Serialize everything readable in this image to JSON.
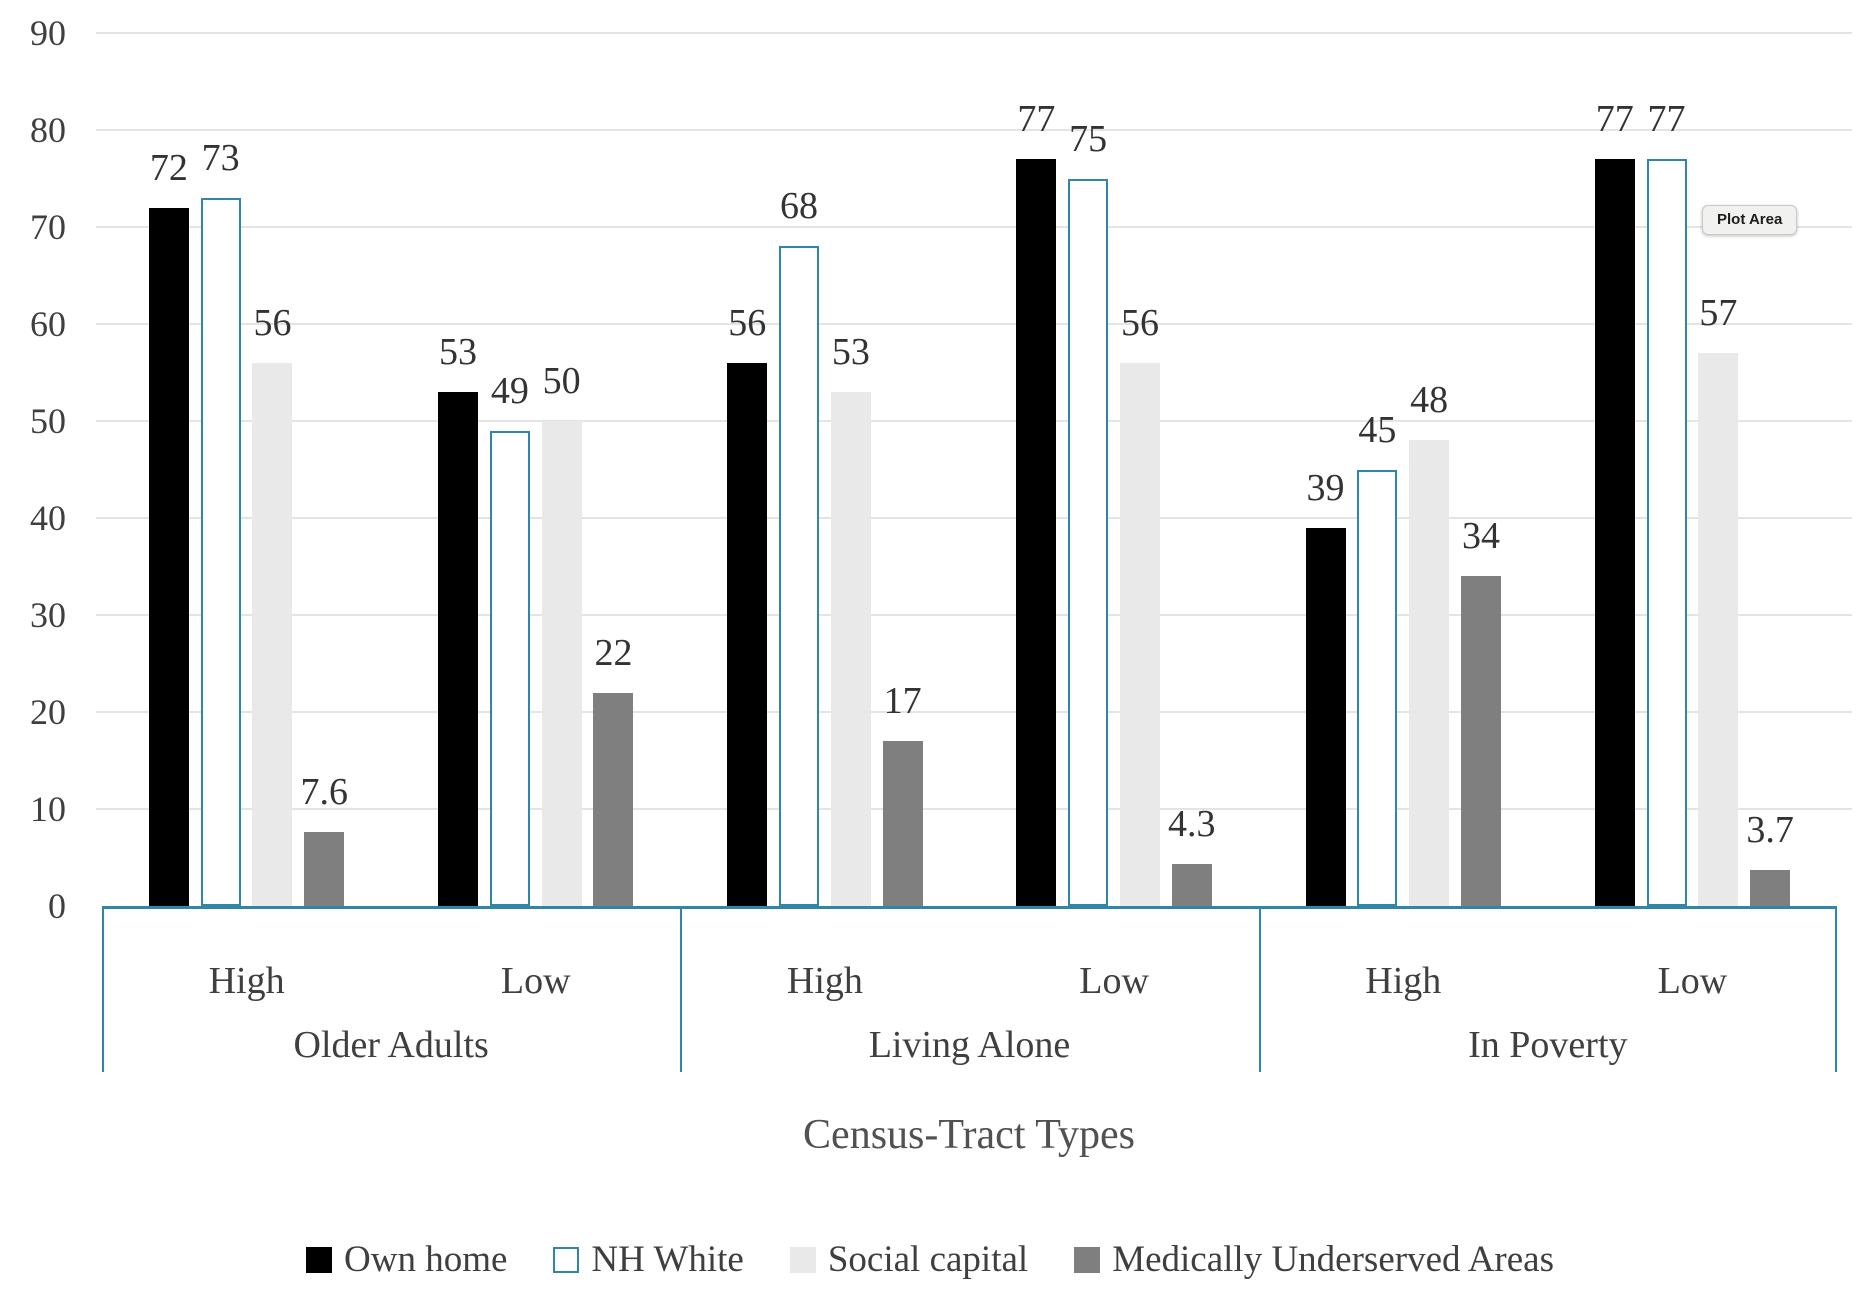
{
  "chart_data": {
    "type": "bar",
    "title": "",
    "xlabel": "Census-Tract Types",
    "ylabel": "",
    "ylim": [
      0,
      90
    ],
    "ytick_step": 10,
    "grid": true,
    "legend_position": "bottom",
    "yaxis_tick_labels": [
      "0",
      "10",
      "20",
      "30",
      "40",
      "50",
      "60",
      "70",
      "80",
      "90"
    ],
    "series": [
      {
        "name": "Own home",
        "fill": "#000000",
        "border": null
      },
      {
        "name": "NH White",
        "fill": "#ffffff",
        "border": "#2f86a9"
      },
      {
        "name": "Social capital",
        "fill": "#e9e9e9",
        "border": null
      },
      {
        "name": "Medically Underserved Areas",
        "fill": "#7f7f7f",
        "border": null
      }
    ],
    "groups": [
      {
        "label": "Older Adults",
        "clusters": [
          {
            "label": "High",
            "values": [
              72,
              73,
              56,
              7.6
            ]
          },
          {
            "label": "Low",
            "values": [
              53,
              49,
              50,
              22
            ]
          }
        ]
      },
      {
        "label": "Living Alone",
        "clusters": [
          {
            "label": "High",
            "values": [
              56,
              68,
              53,
              17
            ]
          },
          {
            "label": "Low",
            "values": [
              77,
              75,
              56,
              4.3
            ]
          }
        ]
      },
      {
        "label": "In Poverty",
        "clusters": [
          {
            "label": "High",
            "values": [
              39,
              45,
              48,
              34
            ]
          },
          {
            "label": "Low",
            "values": [
              77,
              77,
              57,
              3.7
            ]
          }
        ]
      }
    ]
  },
  "tooltip": {
    "label": "Plot Area"
  },
  "colors": {
    "axis_teal": "#2f86a9",
    "gridline": "#e4e4e4",
    "tick_text": "#3f3f3f",
    "value_text": "#333333",
    "title_text": "#515151"
  }
}
